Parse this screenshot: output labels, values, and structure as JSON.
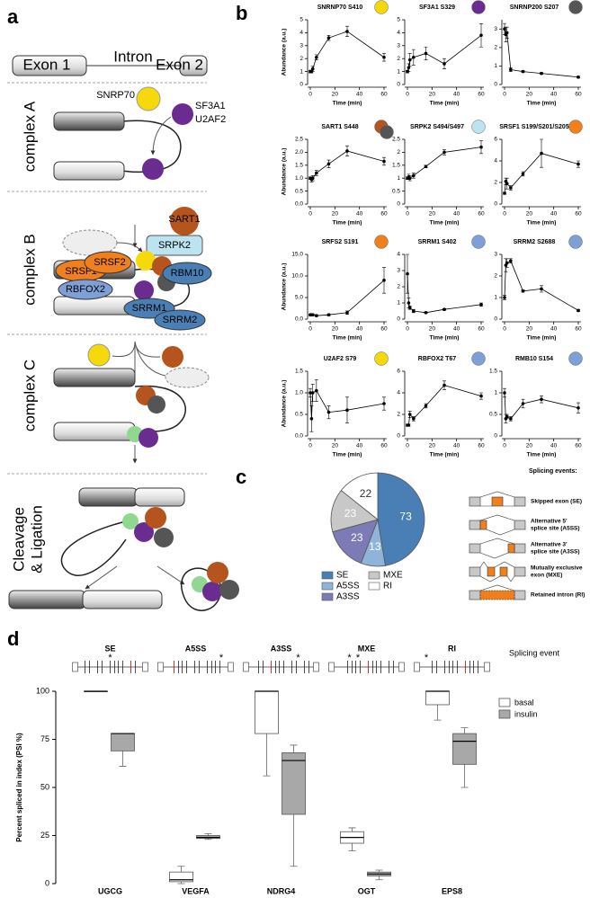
{
  "panel_labels": [
    "a",
    "b",
    "c",
    "d"
  ],
  "diagram": {
    "exon1": "Exon 1",
    "intron": "Intron",
    "exon2": "Exon 2",
    "complex_a": "complex A",
    "complex_b": "complex B",
    "complex_c": "complex C",
    "cleavage": [
      "Cleavage",
      "& Ligation"
    ],
    "proteins": {
      "snrp70": "SNRP70",
      "sf3a1": "SF3A1",
      "u2af2": "U2AF2",
      "sart1": "SART1",
      "srpk2": "SRPK2",
      "srsf1": "SRSF1",
      "srsf2": "SRSF2",
      "rbm10": "RBM10",
      "rbfox2": "RBFOX2",
      "srrm1": "SRRM1",
      "srrm2": "SRRM2"
    }
  },
  "splicing_events": {
    "title": "Splicing events:",
    "items": [
      [
        "Skipped exon (SE)"
      ],
      [
        "Alternative 5'",
        "splice site (A5SS)"
      ],
      [
        "Alternative 3'",
        "splice site (A3SS)"
      ],
      [
        "Mutually exclusive",
        "exon (MXE)"
      ],
      [
        "Retained intron (RI)"
      ]
    ]
  },
  "chart_data": [
    {
      "type": "line",
      "title": "SNRNP70 S410",
      "ylabel": "Abundance (a.u.)",
      "xlabel": "Time (min)",
      "colors": [
        "#f5d90a"
      ],
      "x": [
        0,
        1,
        2,
        5,
        15,
        30,
        60
      ],
      "values": [
        1.0,
        1.0,
        1.2,
        2.1,
        3.6,
        4.1,
        2.1
      ],
      "errors": [
        0.1,
        0.1,
        0.2,
        0.2,
        0.2,
        0.4,
        0.3
      ],
      "xlim": [
        0,
        60
      ],
      "xticks": [
        0,
        20,
        40,
        60
      ],
      "ylim": [
        0,
        5
      ],
      "yticks": [
        0,
        1,
        2,
        3,
        4,
        5
      ]
    },
    {
      "type": "line",
      "title": "SF3A1 S329",
      "xlabel": "Time (min)",
      "colors": [
        "#6a2c91"
      ],
      "x": [
        0,
        1,
        2,
        5,
        15,
        30,
        60
      ],
      "values": [
        1.0,
        1.3,
        1.9,
        2.1,
        2.4,
        1.6,
        3.8
      ],
      "errors": [
        0.1,
        0.3,
        0.5,
        0.6,
        0.5,
        0.4,
        0.9
      ],
      "xlim": [
        0,
        60
      ],
      "xticks": [
        0,
        20,
        40,
        60
      ],
      "ylim": [
        0,
        5
      ],
      "yticks": [
        0,
        1,
        2,
        3,
        4,
        5
      ]
    },
    {
      "type": "line",
      "title": "SNRNP200 S207",
      "xlabel": "Time (min)",
      "colors": [
        "#555555"
      ],
      "x": [
        0,
        1,
        2,
        5,
        15,
        30,
        60
      ],
      "values": [
        3.0,
        2.7,
        2.8,
        0.8,
        0.7,
        0.6,
        0.4
      ],
      "errors": [
        0.3,
        0.4,
        0.3,
        0.1,
        0.05,
        0.05,
        0.05
      ],
      "xlim": [
        0,
        60
      ],
      "xticks": [
        0,
        20,
        40,
        60
      ],
      "ylim": [
        0,
        3.5
      ],
      "yticks": [
        0,
        1,
        2,
        3
      ]
    },
    {
      "type": "line",
      "title": "SART1 S448",
      "ylabel": "Abundance (a.u.)",
      "xlabel": "Time (min)",
      "colors": [
        "#b5541c",
        "#555555"
      ],
      "x": [
        0,
        1,
        2,
        5,
        15,
        30,
        60
      ],
      "values": [
        1.0,
        0.95,
        1.0,
        1.2,
        1.55,
        2.05,
        1.65
      ],
      "errors": [
        0.05,
        0.1,
        0.1,
        0.1,
        0.15,
        0.2,
        0.15
      ],
      "xlim": [
        0,
        60
      ],
      "xticks": [
        0,
        20,
        40,
        60
      ],
      "ylim": [
        0,
        2.5
      ],
      "yticks": [
        {
          "value": 0,
          "label": "0.0"
        },
        {
          "value": 0.5,
          "label": "0.5"
        },
        {
          "value": 1,
          "label": "1.0"
        },
        {
          "value": 1.5,
          "label": "1.5"
        },
        {
          "value": 2,
          "label": "2.0"
        },
        {
          "value": 2.5,
          "label": "2.5"
        }
      ]
    },
    {
      "type": "line",
      "title": "SRPK2 S494/S497",
      "xlabel": "Time (min)",
      "colors": [
        "#bde3f0"
      ],
      "x": [
        0,
        1,
        2,
        5,
        15,
        30,
        60
      ],
      "values": [
        1.0,
        1.05,
        1.0,
        1.1,
        1.45,
        2.0,
        2.2
      ],
      "errors": [
        0.05,
        0.1,
        0.1,
        0.1,
        0.05,
        0.1,
        0.25
      ],
      "xlim": [
        0,
        60
      ],
      "xticks": [
        0,
        20,
        40,
        60
      ],
      "ylim": [
        0,
        2.5
      ],
      "yticks": [
        0,
        0.5,
        1,
        1.5,
        2,
        2.5
      ]
    },
    {
      "type": "line",
      "title": "SRSF1 S199/S201/S205",
      "xlabel": "Time (min)",
      "colors": [
        "#f07f1e"
      ],
      "x": [
        0,
        1,
        2,
        5,
        15,
        30,
        60
      ],
      "values": [
        1.0,
        2.1,
        1.9,
        1.5,
        2.8,
        4.7,
        3.7
      ],
      "errors": [
        0.1,
        0.3,
        0.5,
        0.2,
        0.2,
        1.3,
        0.3
      ],
      "xlim": [
        0,
        60
      ],
      "xticks": [
        0,
        20,
        40,
        60
      ],
      "ylim": [
        0,
        6
      ],
      "yticks": [
        0,
        2,
        4,
        6
      ]
    },
    {
      "type": "line",
      "title": "SRFS2 S191",
      "ylabel": "Abundance (a.u.)",
      "xlabel": "Time (min)",
      "colors": [
        "#f07f1e"
      ],
      "x": [
        0,
        1,
        2,
        5,
        15,
        30,
        60
      ],
      "values": [
        1.0,
        1.0,
        1.0,
        0.8,
        1.0,
        1.5,
        9.0
      ],
      "errors": [
        0.2,
        0.2,
        0.2,
        0.2,
        0.2,
        0.4,
        3.0
      ],
      "xlim": [
        0,
        60
      ],
      "xticks": [
        0,
        20,
        40,
        60
      ],
      "ylim": [
        0,
        15
      ],
      "yticks": [
        {
          "value": 0,
          "label": "0.0"
        },
        {
          "value": 5,
          "label": "5.0"
        },
        {
          "value": 10,
          "label": "10.0"
        },
        {
          "value": 15,
          "label": "15.0"
        }
      ]
    },
    {
      "type": "line",
      "title": "SRRM1 S402",
      "xlabel": "Time (min)",
      "colors": [
        "#7fa0d6"
      ],
      "x": [
        0,
        1,
        2,
        5,
        15,
        30,
        60
      ],
      "values": [
        2.8,
        1.0,
        0.7,
        0.5,
        0.4,
        0.6,
        0.9
      ],
      "errors": [
        1.2,
        0.3,
        0.1,
        0.1,
        0.05,
        0.05,
        0.1
      ],
      "xlim": [
        0,
        60
      ],
      "xticks": [
        0,
        20,
        40,
        60
      ],
      "ylim": [
        0,
        4
      ],
      "yticks": [
        0,
        1,
        2,
        3,
        4
      ]
    },
    {
      "type": "line",
      "title": "SRRM2 S2688",
      "xlabel": "Time (min)",
      "colors": [
        "#7fa0d6"
      ],
      "x": [
        0,
        1,
        2,
        5,
        15,
        30,
        60
      ],
      "values": [
        1.0,
        2.5,
        2.6,
        2.7,
        1.3,
        1.4,
        0.4
      ],
      "errors": [
        0.1,
        0.3,
        0.2,
        0.1,
        0.05,
        0.15,
        0.05
      ],
      "xlim": [
        0,
        60
      ],
      "xticks": [
        0,
        20,
        40,
        60
      ],
      "ylim": [
        0,
        3
      ],
      "yticks": [
        0,
        1,
        2,
        3
      ]
    },
    {
      "type": "line",
      "title": "U2AF2 S79",
      "ylabel": "Abundance (a.u.)",
      "xlabel": "Time (min)",
      "colors": [
        "#f5d90a"
      ],
      "x": [
        0,
        1,
        2,
        5,
        15,
        30,
        60
      ],
      "values": [
        1.0,
        0.4,
        1.0,
        1.05,
        0.55,
        0.6,
        0.75
      ],
      "errors": [
        0.1,
        0.3,
        0.2,
        0.25,
        0.15,
        0.3,
        0.15
      ],
      "xlim": [
        0,
        60
      ],
      "xticks": [
        0,
        20,
        40,
        60
      ],
      "ylim": [
        0,
        1.5
      ],
      "yticks": [
        {
          "value": 0,
          "label": "0.0"
        },
        {
          "value": 0.5,
          "label": "0.5"
        },
        {
          "value": 1,
          "label": "1.0"
        },
        {
          "value": 1.5,
          "label": "1.5"
        }
      ]
    },
    {
      "type": "line",
      "title": "RBFOX2 T67",
      "xlabel": "Time (min)",
      "colors": [
        "#7fa0d6"
      ],
      "x": [
        0,
        1,
        2,
        5,
        15,
        30,
        60
      ],
      "values": [
        1.0,
        1.0,
        2.0,
        1.6,
        2.8,
        4.7,
        3.7
      ],
      "errors": [
        0.1,
        0.1,
        0.3,
        0.2,
        0.2,
        0.4,
        0.3
      ],
      "xlim": [
        0,
        60
      ],
      "xticks": [
        0,
        20,
        40,
        60
      ],
      "ylim": [
        0,
        6
      ],
      "yticks": [
        0,
        2,
        4,
        6
      ]
    },
    {
      "type": "line",
      "title": "RMB10 S154",
      "xlabel": "Time (min)",
      "colors": [
        "#7fa0d6"
      ],
      "x": [
        0,
        1,
        2,
        5,
        15,
        30,
        60
      ],
      "values": [
        1.0,
        0.4,
        0.45,
        0.4,
        0.75,
        0.85,
        0.65
      ],
      "errors": [
        0.1,
        0.1,
        0.05,
        0.05,
        0.1,
        0.08,
        0.12
      ],
      "xlim": [
        0,
        60
      ],
      "xticks": [
        0,
        20,
        40,
        60
      ],
      "ylim": [
        0,
        1.5
      ],
      "yticks": [
        0,
        0.5,
        1,
        1.5
      ]
    },
    {
      "type": "pie",
      "categories": [
        "SE",
        "A5SS",
        "A3SS",
        "MXE",
        "RI"
      ],
      "values": [
        73,
        13,
        23,
        23,
        22
      ],
      "colors": [
        "#4a7fb5",
        "#8fb3d9",
        "#7c7bb5",
        "#c8c8c8",
        "#ffffff"
      ]
    },
    {
      "type": "box",
      "ylabel": "Percent spliced in index (PSI %)",
      "events": [
        "SE",
        "A5SS",
        "A3SS",
        "MXE",
        "RI"
      ],
      "event_label": "Splicing event",
      "categories": [
        "UGCG",
        "VEGFA",
        "NDRG4",
        "OGT",
        "EPS8"
      ],
      "annotation": "*",
      "ylim": [
        0,
        100
      ],
      "yticks": [
        0,
        25,
        50,
        75,
        100
      ],
      "series": [
        {
          "name": "basal",
          "color": "#ffffff",
          "values": [
            [
              100,
              100,
              100,
              100,
              100
            ],
            [
              0,
              1,
              2,
              6,
              9
            ],
            [
              56,
              78,
              100,
              100,
              100
            ],
            [
              17,
              21,
              24,
              27,
              29
            ],
            [
              85,
              93,
              100,
              100,
              100
            ]
          ]
        },
        {
          "name": "insulin",
          "color": "#a8a8a8",
          "values": [
            [
              61,
              69,
              78,
              78,
              78
            ],
            [
              23,
              23.5,
              24,
              25,
              26
            ],
            [
              9,
              36,
              64,
              68,
              72
            ],
            [
              2,
              4,
              5,
              6,
              7
            ],
            [
              50,
              62,
              74,
              78,
              81
            ]
          ]
        }
      ]
    }
  ]
}
